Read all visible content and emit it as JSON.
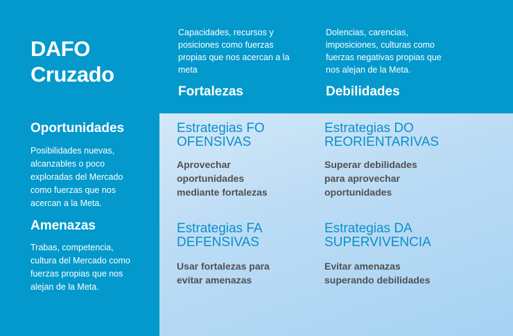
{
  "title_line1": "DAFO",
  "title_line2": "Cruzado",
  "fortalezas": {
    "description": [
      "Capacidades, recursos y",
      "posiciones como fuerzas",
      "propias que nos acercan a la",
      "meta"
    ],
    "heading": "Fortalezas"
  },
  "debilidades": {
    "description": [
      "Dolencias, carencias,",
      "imposiciones, culturas como",
      "fuerzas negativas propias que",
      "nos alejan de la Meta."
    ],
    "heading": "Debilidades"
  },
  "oportunidades": {
    "heading": "Oportunidades",
    "description": [
      "Posibilidades nuevas,",
      "alcanzables o poco",
      "exploradas del Mercado",
      "como fuerzas que nos",
      "acercan a la Meta."
    ]
  },
  "amenazas": {
    "heading": "Amenazas",
    "description": [
      "Trabas, competencia,",
      "cultura del Mercado como",
      "fuerzas propias que nos",
      "alejan de la Meta."
    ]
  },
  "strategies": {
    "fo": {
      "title": [
        "Estrategias FO",
        "OFENSIVAS"
      ],
      "body": [
        "Aprovechar",
        "oportunidades",
        "mediante fortalezas"
      ]
    },
    "do": {
      "title": [
        "Estrategias DO",
        "REORIENTARIVAS"
      ],
      "body": [
        "Superar debilidades",
        "para aprovechar",
        "oportunidades"
      ]
    },
    "fa": {
      "title": [
        "Estrategias FA",
        "DEFENSIVAS"
      ],
      "body": [
        "Usar fortalezas para",
        "evitar amenazas"
      ]
    },
    "da": {
      "title": [
        "Estrategias DA",
        "SUPERVIVENCIA"
      ],
      "body": [
        "Evitar amenazas",
        "superando debilidades"
      ]
    }
  },
  "colors": {
    "background": "#0399cc",
    "panel": "#bcdcf5",
    "strategy_title": "#0a8fcb",
    "strategy_body": "#505050"
  }
}
